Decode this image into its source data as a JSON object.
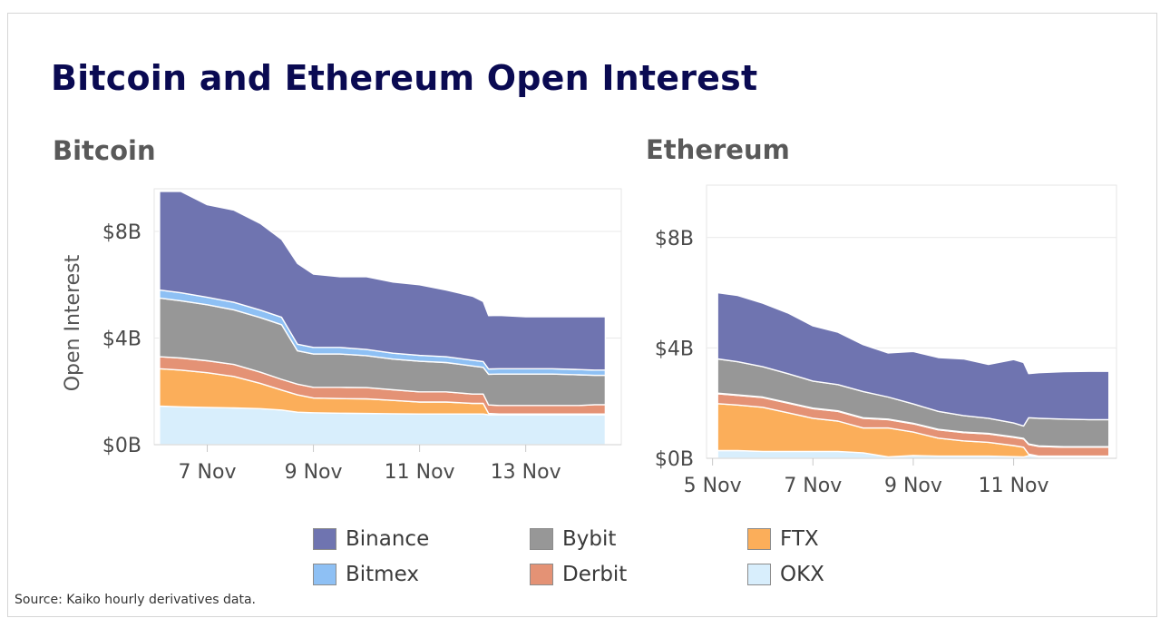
{
  "title": "Bitcoin and Ethereum Open Interest",
  "source": "Source: Kaiko hourly derivatives data.",
  "series_colors": {
    "Binance": "#6f74b0",
    "Bybit": "#979797",
    "FTX": "#fbae5a",
    "Bitmex": "#8ec0f4",
    "Derbit": "#e49275",
    "OKX": "#d8eefc"
  },
  "legend": [
    {
      "name": "Binance",
      "swatch": "#6f74b0"
    },
    {
      "name": "Bybit",
      "swatch": "#979797"
    },
    {
      "name": "FTX",
      "swatch": "#fbae5a"
    },
    {
      "name": "Bitmex",
      "swatch": "#8ec0f4"
    },
    {
      "name": "Derbit",
      "swatch": "#e49275"
    },
    {
      "name": "OKX",
      "swatch": "#d8eefc"
    }
  ],
  "chart_data": [
    {
      "type": "area",
      "stacked": true,
      "title": "Bitcoin",
      "xlabel": "",
      "ylabel": "Open Interest",
      "ylim": [
        0,
        9.6
      ],
      "xlim": [
        6.0,
        14.8
      ],
      "yticks": [
        {
          "v": 0,
          "label": "$0B"
        },
        {
          "v": 4,
          "label": "$4B"
        },
        {
          "v": 8,
          "label": "$8B"
        }
      ],
      "xticks": [
        {
          "v": 7,
          "label": "7 Nov"
        },
        {
          "v": 9,
          "label": "9 Nov"
        },
        {
          "v": 11,
          "label": "11 Nov"
        },
        {
          "v": 13,
          "label": "13 Nov"
        }
      ],
      "x": [
        6.1,
        6.5,
        7.0,
        7.5,
        8.0,
        8.4,
        8.7,
        9.0,
        9.5,
        10.0,
        10.5,
        11.0,
        11.5,
        12.0,
        12.2,
        12.3,
        12.5,
        13.0,
        13.5,
        14.0,
        14.3,
        14.5
      ],
      "series": [
        {
          "name": "OKX",
          "values": [
            1.45,
            1.42,
            1.4,
            1.38,
            1.35,
            1.3,
            1.22,
            1.2,
            1.18,
            1.17,
            1.16,
            1.15,
            1.15,
            1.15,
            1.15,
            1.12,
            1.12,
            1.12,
            1.12,
            1.12,
            1.12,
            1.12
          ]
        },
        {
          "name": "FTX",
          "values": [
            1.4,
            1.38,
            1.3,
            1.18,
            0.95,
            0.75,
            0.65,
            0.55,
            0.55,
            0.55,
            0.5,
            0.45,
            0.45,
            0.4,
            0.4,
            0.05,
            0.03,
            0.03,
            0.03,
            0.03,
            0.03,
            0.03
          ]
        },
        {
          "name": "Derbit",
          "values": [
            0.45,
            0.45,
            0.45,
            0.45,
            0.42,
            0.4,
            0.4,
            0.4,
            0.42,
            0.42,
            0.4,
            0.38,
            0.38,
            0.35,
            0.35,
            0.32,
            0.32,
            0.32,
            0.32,
            0.32,
            0.35,
            0.35
          ]
        },
        {
          "name": "Bybit",
          "values": [
            2.2,
            2.15,
            2.1,
            2.05,
            2.05,
            2.05,
            1.25,
            1.25,
            1.25,
            1.2,
            1.15,
            1.15,
            1.1,
            1.05,
            1.0,
            1.15,
            1.18,
            1.18,
            1.18,
            1.15,
            1.1,
            1.1
          ]
        },
        {
          "name": "Bitmex",
          "values": [
            0.3,
            0.3,
            0.28,
            0.28,
            0.28,
            0.28,
            0.25,
            0.25,
            0.25,
            0.23,
            0.22,
            0.22,
            0.22,
            0.22,
            0.22,
            0.2,
            0.2,
            0.2,
            0.2,
            0.2,
            0.2,
            0.2
          ]
        },
        {
          "name": "Binance",
          "values": [
            3.7,
            3.8,
            3.47,
            3.46,
            3.25,
            2.92,
            3.03,
            2.75,
            2.65,
            2.73,
            2.67,
            2.65,
            2.5,
            2.4,
            2.25,
            2.0,
            2.0,
            1.95,
            1.95,
            1.98,
            2.0,
            2.0
          ]
        }
      ]
    },
    {
      "type": "area",
      "stacked": true,
      "title": "Ethereum",
      "xlabel": "",
      "ylabel": "",
      "ylim": [
        0,
        9.9
      ],
      "xlim": [
        4.88,
        13.05
      ],
      "yticks": [
        {
          "v": 0,
          "label": "$0B"
        },
        {
          "v": 4,
          "label": "$4B"
        },
        {
          "v": 8,
          "label": "$8B"
        }
      ],
      "xticks": [
        {
          "v": 5,
          "label": "5 Nov"
        },
        {
          "v": 7,
          "label": "7 Nov"
        },
        {
          "v": 9,
          "label": "9 Nov"
        },
        {
          "v": 11,
          "label": "11 Nov"
        }
      ],
      "x": [
        5.1,
        5.5,
        6.0,
        6.5,
        7.0,
        7.5,
        8.0,
        8.5,
        9.0,
        9.5,
        10.0,
        10.5,
        11.0,
        11.2,
        11.3,
        11.5,
        12.0,
        12.5,
        12.9
      ],
      "series": [
        {
          "name": "OKX",
          "values": [
            0.28,
            0.28,
            0.25,
            0.25,
            0.25,
            0.25,
            0.2,
            0.05,
            0.1,
            0.08,
            0.08,
            0.08,
            0.06,
            0.05,
            0.1,
            0.05,
            0.05,
            0.05,
            0.05
          ]
        },
        {
          "name": "FTX",
          "values": [
            1.7,
            1.65,
            1.6,
            1.4,
            1.2,
            1.1,
            0.9,
            1.05,
            0.85,
            0.65,
            0.55,
            0.5,
            0.4,
            0.35,
            0.05,
            0.03,
            0.03,
            0.03,
            0.03
          ]
        },
        {
          "name": "Derbit",
          "values": [
            0.36,
            0.35,
            0.35,
            0.35,
            0.35,
            0.35,
            0.35,
            0.3,
            0.3,
            0.3,
            0.3,
            0.3,
            0.3,
            0.3,
            0.35,
            0.35,
            0.32,
            0.32,
            0.32
          ]
        },
        {
          "name": "Bitmex",
          "values": [
            0.02,
            0.02,
            0.02,
            0.02,
            0.02,
            0.02,
            0.02,
            0.02,
            0.02,
            0.02,
            0.02,
            0.02,
            0.02,
            0.02,
            0.02,
            0.02,
            0.02,
            0.02,
            0.02
          ]
        },
        {
          "name": "Bybit",
          "values": [
            1.24,
            1.2,
            1.1,
            1.05,
            0.98,
            0.95,
            0.95,
            0.8,
            0.7,
            0.65,
            0.6,
            0.55,
            0.5,
            0.45,
            0.95,
            1.0,
            1.0,
            0.98,
            0.98
          ]
        },
        {
          "name": "Binance",
          "values": [
            2.4,
            2.4,
            2.3,
            2.2,
            2.0,
            1.9,
            1.7,
            1.6,
            1.9,
            1.95,
            2.05,
            1.95,
            2.3,
            2.3,
            1.6,
            1.65,
            1.72,
            1.75,
            1.75
          ]
        }
      ]
    }
  ]
}
